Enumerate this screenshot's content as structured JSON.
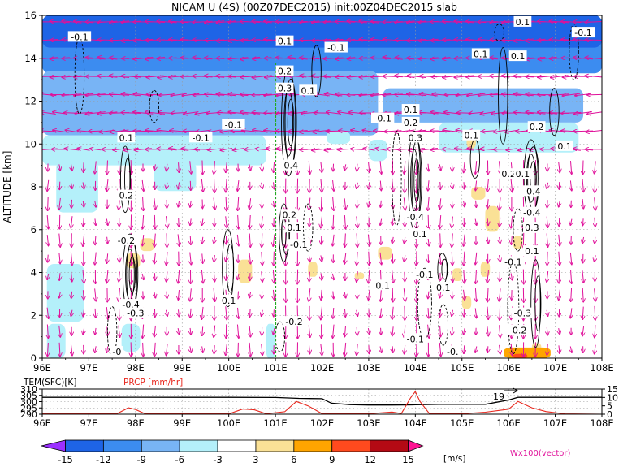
{
  "title": "NICAM U (4S) (00Z07DEC2015) init:00Z04DEC2015 slab",
  "main": {
    "ylabel": "ALTITUDE [km]",
    "x_ticks": [
      "96E",
      "97E",
      "98E",
      "99E",
      "100E",
      "101E",
      "102E",
      "103E",
      "104E",
      "105E",
      "106E",
      "107E",
      "108E"
    ],
    "y_ticks": [
      "0",
      "2",
      "4",
      "6",
      "8",
      "10",
      "12",
      "14",
      "16"
    ],
    "contour_labels": [
      {
        "text": "-0.1",
        "lon": 96.8,
        "alt": 15.0
      },
      {
        "text": "0.1",
        "lon": 101.2,
        "alt": 14.8
      },
      {
        "text": "-0.1",
        "lon": 102.3,
        "alt": 14.5
      },
      {
        "text": "0.1",
        "lon": 105.4,
        "alt": 14.2
      },
      {
        "text": "0.1",
        "lon": 106.2,
        "alt": 14.1
      },
      {
        "text": "0.1",
        "lon": 106.3,
        "alt": 15.7
      },
      {
        "text": "-0.1",
        "lon": 107.6,
        "alt": 15.2
      },
      {
        "text": "0.2",
        "lon": 101.2,
        "alt": 13.4
      },
      {
        "text": "0.3",
        "lon": 101.2,
        "alt": 12.6
      },
      {
        "text": "0.1",
        "lon": 101.7,
        "alt": 12.5
      },
      {
        "text": "-0.1",
        "lon": 100.1,
        "alt": 10.9
      },
      {
        "text": "-0.1",
        "lon": 103.3,
        "alt": 11.2
      },
      {
        "text": "0.1",
        "lon": 103.9,
        "alt": 11.6
      },
      {
        "text": "0.2",
        "lon": 103.9,
        "alt": 11.0
      },
      {
        "text": "0.3",
        "lon": 104.0,
        "alt": 10.3
      },
      {
        "text": "-0.1",
        "lon": 99.4,
        "alt": 10.3
      },
      {
        "text": "0.1",
        "lon": 97.8,
        "alt": 10.3
      },
      {
        "text": "0.1",
        "lon": 105.2,
        "alt": 10.4
      },
      {
        "text": "0.2",
        "lon": 106.6,
        "alt": 10.8
      },
      {
        "text": "0.1",
        "lon": 107.2,
        "alt": 9.9
      },
      {
        "text": "-0.4",
        "lon": 101.3,
        "alt": 9.0
      },
      {
        "text": "0.2",
        "lon": 106.0,
        "alt": 8.6
      },
      {
        "text": "0.1",
        "lon": 106.3,
        "alt": 8.6
      },
      {
        "text": "-0.4",
        "lon": 106.5,
        "alt": 7.8
      },
      {
        "text": "0.2",
        "lon": 97.8,
        "alt": 7.6
      },
      {
        "text": "0.2",
        "lon": 101.3,
        "alt": 6.7
      },
      {
        "text": "0.1",
        "lon": 101.4,
        "alt": 6.1
      },
      {
        "text": "-0.4",
        "lon": 104.0,
        "alt": 6.6
      },
      {
        "text": "0.1",
        "lon": 104.1,
        "alt": 5.8
      },
      {
        "text": "-0.4",
        "lon": 106.5,
        "alt": 6.8
      },
      {
        "text": "0.3",
        "lon": 106.5,
        "alt": 6.1
      },
      {
        "text": "-0.2",
        "lon": 97.8,
        "alt": 5.5
      },
      {
        "text": "-0.1",
        "lon": 101.5,
        "alt": 5.3
      },
      {
        "text": "-0.1",
        "lon": 106.1,
        "alt": 4.5
      },
      {
        "text": "0.1",
        "lon": 106.5,
        "alt": 5.0
      },
      {
        "text": "-0.1",
        "lon": 104.2,
        "alt": 3.9
      },
      {
        "text": "0.1",
        "lon": 104.6,
        "alt": 3.3
      },
      {
        "text": "0.1",
        "lon": 103.3,
        "alt": 3.4
      },
      {
        "text": "-0.4",
        "lon": 97.9,
        "alt": 2.5
      },
      {
        "text": "0.1",
        "lon": 100.0,
        "alt": 2.7
      },
      {
        "text": "-0.3",
        "lon": 98.0,
        "alt": 2.1
      },
      {
        "text": "-0.2",
        "lon": 101.4,
        "alt": 1.7
      },
      {
        "text": "-0.3",
        "lon": 106.3,
        "alt": 2.1
      },
      {
        "text": "-0.2",
        "lon": 106.2,
        "alt": 1.3
      },
      {
        "text": "-0.1",
        "lon": 104.0,
        "alt": 0.9
      },
      {
        "text": "-0.",
        "lon": 104.8,
        "alt": 0.3
      },
      {
        "text": "-0",
        "lon": 97.6,
        "alt": 0.3
      }
    ]
  },
  "sub": {
    "left_label": "TEM(SFC)[K]",
    "right_label": "PRCP [mm/hr]",
    "left_ticks": [
      "310",
      "305",
      "300",
      "295",
      "290"
    ],
    "right_ticks": [
      "15",
      "10",
      "5",
      "0"
    ],
    "annotation": "19"
  },
  "colorbar": {
    "ticks": [
      "-15",
      "-12",
      "-9",
      "-6",
      "-3",
      "3",
      "6",
      "9",
      "12",
      "15"
    ],
    "unit": "[m/s]",
    "vector_label": "Wx100(vector)",
    "colors": [
      "#9b30ff",
      "#1e64e6",
      "#3c8cf0",
      "#78b4f5",
      "#b4f0fa",
      "#ffffff",
      "#fae196",
      "#ffa500",
      "#ff4a1e",
      "#b40a14",
      "#ff1493"
    ]
  },
  "chart_data": {
    "type": "heatmap",
    "title": "NICAM U (4S) (00Z07DEC2015) init:00Z04DEC2015 slab",
    "xlabel": "",
    "ylabel": "ALTITUDE [km]",
    "xlim": [
      96,
      108
    ],
    "ylim": [
      0,
      16
    ],
    "x_unit": "longitude degrees E",
    "marker_line_lon": 101.0,
    "shading": [
      {
        "lon0": 96.0,
        "lon1": 108.0,
        "alt0": 13.3,
        "alt1": 16.0,
        "level": -9
      },
      {
        "lon0": 96.0,
        "lon1": 108.0,
        "alt0": 14.5,
        "alt1": 16.0,
        "level": -12
      },
      {
        "lon0": 96.0,
        "lon1": 103.2,
        "alt0": 10.4,
        "alt1": 13.4,
        "level": -6
      },
      {
        "lon0": 103.3,
        "lon1": 107.6,
        "alt0": 11.0,
        "alt1": 12.6,
        "level": -6
      },
      {
        "lon0": 96.0,
        "lon1": 100.8,
        "alt0": 9.0,
        "alt1": 10.4,
        "level": -3
      },
      {
        "lon0": 104.5,
        "lon1": 107.5,
        "alt0": 9.6,
        "alt1": 11.0,
        "level": -3
      },
      {
        "lon0": 96.3,
        "lon1": 97.2,
        "alt0": 6.8,
        "alt1": 9.2,
        "level": -3
      },
      {
        "lon0": 98.4,
        "lon1": 99.3,
        "alt0": 7.8,
        "alt1": 9.2,
        "level": -3
      },
      {
        "lon0": 96.1,
        "lon1": 96.9,
        "alt0": 1.7,
        "alt1": 4.4,
        "level": -3
      },
      {
        "lon0": 96.1,
        "lon1": 96.5,
        "alt0": 0.0,
        "alt1": 1.6,
        "level": -3
      },
      {
        "lon0": 97.7,
        "lon1": 98.1,
        "alt0": 0.3,
        "alt1": 1.6,
        "level": -3
      },
      {
        "lon0": 100.8,
        "lon1": 101.0,
        "alt0": 0.0,
        "alt1": 1.6,
        "level": -3
      },
      {
        "lon0": 102.1,
        "lon1": 102.6,
        "alt0": 10.0,
        "alt1": 10.6,
        "level": -3
      },
      {
        "lon0": 103.0,
        "lon1": 103.4,
        "alt0": 9.2,
        "alt1": 10.2,
        "level": -3
      },
      {
        "lon0": 97.8,
        "lon1": 98.1,
        "alt0": 4.2,
        "alt1": 4.9,
        "level": 3
      },
      {
        "lon0": 98.1,
        "lon1": 98.4,
        "alt0": 5.0,
        "alt1": 5.6,
        "level": 3
      },
      {
        "lon0": 100.2,
        "lon1": 100.5,
        "alt0": 3.5,
        "alt1": 4.6,
        "level": 3
      },
      {
        "lon0": 101.7,
        "lon1": 101.9,
        "alt0": 3.8,
        "alt1": 4.5,
        "level": 3
      },
      {
        "lon0": 103.2,
        "lon1": 103.5,
        "alt0": 4.6,
        "alt1": 5.2,
        "level": 3
      },
      {
        "lon0": 102.7,
        "lon1": 102.9,
        "alt0": 3.7,
        "alt1": 4.0,
        "level": 3
      },
      {
        "lon0": 105.2,
        "lon1": 105.5,
        "alt0": 7.4,
        "alt1": 8.0,
        "level": 3
      },
      {
        "lon0": 105.5,
        "lon1": 105.8,
        "alt0": 5.9,
        "alt1": 7.1,
        "level": 3
      },
      {
        "lon0": 105.4,
        "lon1": 105.6,
        "alt0": 3.8,
        "alt1": 4.5,
        "level": 3
      },
      {
        "lon0": 105.0,
        "lon1": 105.2,
        "alt0": 2.3,
        "alt1": 2.9,
        "level": 3
      },
      {
        "lon0": 105.1,
        "lon1": 105.3,
        "alt0": 9.8,
        "alt1": 10.5,
        "level": 3
      },
      {
        "lon0": 104.8,
        "lon1": 105.0,
        "alt0": 3.6,
        "alt1": 4.2,
        "level": 3
      },
      {
        "lon0": 106.1,
        "lon1": 106.3,
        "alt0": 5.1,
        "alt1": 5.7,
        "level": 3
      },
      {
        "lon0": 106.5,
        "lon1": 106.7,
        "alt0": 0.2,
        "alt1": 0.7,
        "level": 3
      },
      {
        "lon0": 105.9,
        "lon1": 106.9,
        "alt0": 0.0,
        "alt1": 0.5,
        "level": 6
      },
      {
        "lon0": 106.1,
        "lon1": 106.4,
        "alt0": 0.0,
        "alt1": 0.2,
        "level": 9
      }
    ],
    "contour_positive": [
      {
        "lon": 97.9,
        "alt0": 2.0,
        "alt1": 5.8,
        "width": 0.15,
        "n": 4
      },
      {
        "lon": 97.8,
        "alt0": 6.8,
        "alt1": 9.9,
        "width": 0.1,
        "n": 2
      },
      {
        "lon": 100.0,
        "alt0": 2.4,
        "alt1": 6.0,
        "width": 0.12,
        "n": 2
      },
      {
        "lon": 101.3,
        "alt0": 8.5,
        "alt1": 13.5,
        "width": 0.15,
        "n": 4
      },
      {
        "lon": 101.2,
        "alt0": 4.5,
        "alt1": 7.2,
        "width": 0.1,
        "n": 3
      },
      {
        "lon": 104.0,
        "alt0": 6.0,
        "alt1": 10.6,
        "width": 0.13,
        "n": 4
      },
      {
        "lon": 104.6,
        "alt0": 3.4,
        "alt1": 4.9,
        "width": 0.1,
        "n": 2
      },
      {
        "lon": 106.5,
        "alt0": 6.6,
        "alt1": 10.2,
        "width": 0.15,
        "n": 4
      },
      {
        "lon": 106.6,
        "alt0": 0.5,
        "alt1": 4.6,
        "width": 0.1,
        "n": 2
      },
      {
        "lon": 105.9,
        "alt0": 10.0,
        "alt1": 14.5,
        "width": 0.1,
        "n": 1
      },
      {
        "lon": 101.9,
        "alt0": 12.2,
        "alt1": 14.6,
        "width": 0.1,
        "n": 1
      },
      {
        "lon": 105.3,
        "alt0": 8.4,
        "alt1": 10.2,
        "width": 0.1,
        "n": 1
      },
      {
        "lon": 107.0,
        "alt0": 10.4,
        "alt1": 12.6,
        "width": 0.1,
        "n": 1
      }
    ],
    "contour_negative": [
      {
        "lon": 96.8,
        "alt0": 11.4,
        "alt1": 15.0,
        "width": 0.1
      },
      {
        "lon": 98.4,
        "alt0": 11.0,
        "alt1": 12.5,
        "width": 0.1
      },
      {
        "lon": 101.7,
        "alt0": 5.0,
        "alt1": 7.2,
        "width": 0.1
      },
      {
        "lon": 104.2,
        "alt0": 0.9,
        "alt1": 4.2,
        "width": 0.15
      },
      {
        "lon": 104.6,
        "alt0": 0.6,
        "alt1": 2.5,
        "width": 0.1
      },
      {
        "lon": 103.6,
        "alt0": 6.2,
        "alt1": 10.6,
        "width": 0.1
      },
      {
        "lon": 101.1,
        "alt0": 0.3,
        "alt1": 1.7,
        "width": 0.1
      },
      {
        "lon": 106.1,
        "alt0": 0.2,
        "alt1": 4.5,
        "width": 0.12
      },
      {
        "lon": 106.2,
        "alt0": 5.0,
        "alt1": 7.0,
        "width": 0.1
      },
      {
        "lon": 97.5,
        "alt0": 0.1,
        "alt1": 2.4,
        "width": 0.1
      },
      {
        "lon": 107.4,
        "alt0": 13.0,
        "alt1": 15.6,
        "width": 0.1
      },
      {
        "lon": 105.8,
        "alt0": 14.8,
        "alt1": 15.6,
        "width": 0.1
      }
    ],
    "vectors": {
      "lon_start": 96.12,
      "lon_step": 0.255,
      "alt_start": 0.4,
      "alt_step": 0.85,
      "columns": 47,
      "rows": 19
    },
    "sub_panel": {
      "xlim": [
        96,
        108
      ],
      "tem_ylim": [
        290,
        310
      ],
      "prcp_ylim": [
        0,
        15
      ],
      "tem_series": {
        "name": "TEM(SFC)[K]",
        "lon": [
          96.0,
          97.0,
          98.0,
          99.0,
          100.0,
          101.0,
          101.5,
          102.0,
          102.2,
          102.6,
          103.0,
          103.5,
          104.0,
          104.5,
          105.0,
          105.5,
          106.0,
          106.2,
          107.0,
          108.0
        ],
        "values": [
          303.4,
          303.4,
          303.5,
          303.4,
          303.4,
          303.3,
          302.6,
          302.3,
          298.8,
          297.6,
          297.3,
          297.3,
          297.5,
          297.8,
          297.9,
          297.9,
          301.3,
          303.4,
          303.4,
          303.4
        ]
      },
      "prcp_series": {
        "name": "PRCP [mm/hr]",
        "lon": [
          96.0,
          97.6,
          97.85,
          98.0,
          98.2,
          100.0,
          100.3,
          100.55,
          100.8,
          101.2,
          101.45,
          101.7,
          102.0,
          103.0,
          103.5,
          103.7,
          103.9,
          104.0,
          104.1,
          104.3,
          104.6,
          105.0,
          105.5,
          106.0,
          106.2,
          106.5,
          106.8,
          107.2,
          108.0
        ],
        "values": [
          0.2,
          0.3,
          3.8,
          2.8,
          0.4,
          0.2,
          3.1,
          2.6,
          0.3,
          1.5,
          7.6,
          5.0,
          0.3,
          0.3,
          1.3,
          0.4,
          9.8,
          13.5,
          7.6,
          0.4,
          0.3,
          0.3,
          1.2,
          3.0,
          7.6,
          3.8,
          1.6,
          0.2,
          0.0
        ]
      }
    }
  }
}
